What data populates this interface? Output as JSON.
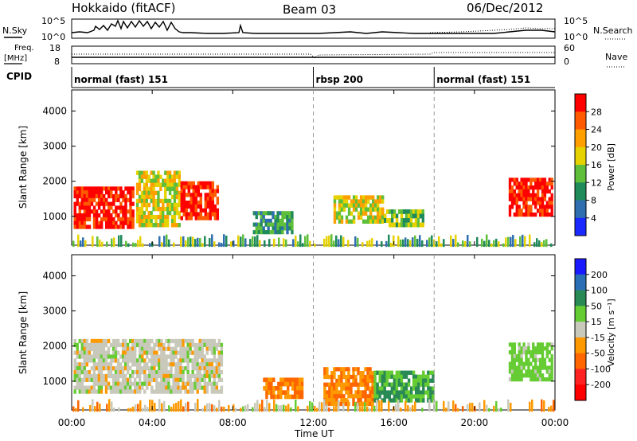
{
  "header": {
    "station": "Hokkaido (fitACF)",
    "beam": "Beam 03",
    "date": "06/Dec/2012"
  },
  "top_panels": {
    "nsky_label": "N.Sky",
    "nsky_ticks": [
      "10^5",
      "10^0"
    ],
    "nsearch_label": "N.Search",
    "nsearch_ticks": [
      "10^5",
      "10^0"
    ],
    "freq_label_1": "Freq.",
    "freq_label_2": "[MHz]",
    "freq_ticks": [
      "18",
      "8"
    ],
    "nave_label": "Nave",
    "nave_ticks": [
      "60",
      "0"
    ],
    "cpid_label": "CPID"
  },
  "cpid_segments": [
    {
      "label": "normal (fast) 151",
      "start_hour": 0
    },
    {
      "label": "rbsp 200",
      "start_hour": 12
    },
    {
      "label": "normal (fast) 151",
      "start_hour": 18
    }
  ],
  "axes": {
    "x_ticks": [
      "00:00",
      "04:00",
      "08:00",
      "12:00",
      "16:00",
      "20:00",
      "00:00"
    ],
    "x_hours": [
      0,
      4,
      8,
      12,
      16,
      20,
      24
    ],
    "xlabel": "Time UT",
    "ylabel": "Slant Range [km]",
    "y_ticks": [
      "1000",
      "2000",
      "3000",
      "4000"
    ],
    "y_values": [
      1000,
      2000,
      3000,
      4000
    ],
    "ylim": [
      180,
      4600
    ],
    "xlim_hours": [
      0,
      24
    ]
  },
  "power_scale": {
    "label": "Power [dB]",
    "ticks": [
      "28",
      "24",
      "20",
      "16",
      "12",
      "8",
      "4"
    ],
    "colors": [
      "#ff0000",
      "#ff5a00",
      "#ffa000",
      "#e6d200",
      "#5fbf3a",
      "#1f8a5a",
      "#2f6fb0",
      "#1a2aff"
    ]
  },
  "velocity_scale": {
    "label": "Velocity [m s⁻¹]",
    "ticks": [
      "200",
      "100",
      "50",
      "15",
      "-15",
      "-50",
      "-100",
      "-200"
    ],
    "colors": [
      "#1a1aff",
      "#2a6fb5",
      "#2a8a55",
      "#66cc33",
      "#c8c8bb",
      "#ff9900",
      "#ff6600",
      "#ff2222",
      "#ff0000"
    ]
  },
  "chart_data": [
    {
      "type": "heatmap",
      "title": "Power",
      "xlabel": "Time UT",
      "ylabel": "Slant Range [km]",
      "colorbar_label": "Power [dB]",
      "regions": [
        {
          "t0": 0.1,
          "t1": 3.1,
          "r0": 650,
          "r1": 1850,
          "level": 28
        },
        {
          "t0": 3.2,
          "t1": 5.4,
          "r0": 700,
          "r1": 2300,
          "level": 16
        },
        {
          "t0": 5.4,
          "t1": 7.3,
          "r0": 900,
          "r1": 2000,
          "level": 28
        },
        {
          "t0": 9.0,
          "t1": 11.0,
          "r0": 500,
          "r1": 1150,
          "level": 8
        },
        {
          "t0": 13.0,
          "t1": 15.5,
          "r0": 800,
          "r1": 1600,
          "level": 16
        },
        {
          "t0": 15.5,
          "t1": 17.5,
          "r0": 700,
          "r1": 1200,
          "level": 12
        },
        {
          "t0": 21.7,
          "t1": 23.9,
          "r0": 1000,
          "r1": 2100,
          "level": 28
        }
      ]
    },
    {
      "type": "heatmap",
      "title": "Velocity",
      "xlabel": "Time UT",
      "ylabel": "Slant Range [km]",
      "colorbar_label": "Velocity [m s⁻¹]",
      "regions": [
        {
          "t0": 0.1,
          "t1": 7.5,
          "r0": 650,
          "r1": 2200,
          "level": 0
        },
        {
          "t0": 9.5,
          "t1": 11.5,
          "r0": 500,
          "r1": 1100,
          "level": -50
        },
        {
          "t0": 12.5,
          "t1": 15.0,
          "r0": 300,
          "r1": 1400,
          "level": -50
        },
        {
          "t0": 15.0,
          "t1": 18.0,
          "r0": 400,
          "r1": 1300,
          "level": 50
        },
        {
          "t0": 21.7,
          "t1": 23.9,
          "r0": 1000,
          "r1": 2100,
          "level": 30
        }
      ]
    }
  ]
}
